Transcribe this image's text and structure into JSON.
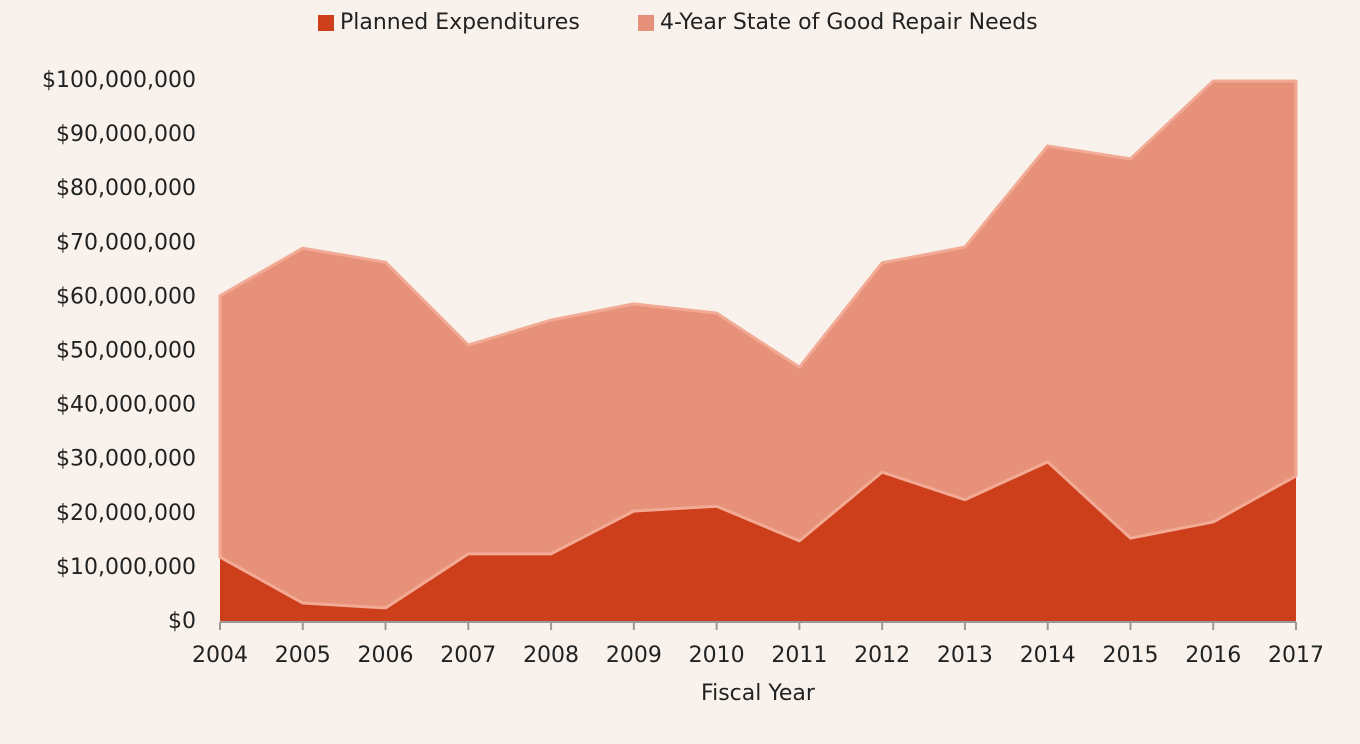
{
  "chart_data": {
    "type": "stacked_area",
    "xlabel": "Fiscal Year",
    "categories": [
      "2004",
      "2005",
      "2006",
      "2007",
      "2008",
      "2009",
      "2010",
      "2011",
      "2012",
      "2013",
      "2014",
      "2015",
      "2016",
      "2017"
    ],
    "series": [
      {
        "name": "Planned Expenditures",
        "color": "#cc3f1a",
        "values": [
          12000000,
          3500000,
          2600000,
          12600000,
          12600000,
          20500000,
          21400000,
          15000000,
          27700000,
          22600000,
          29600000,
          15500000,
          18500000,
          27000000
        ]
      },
      {
        "name": "4-Year State of Good Repair Needs",
        "color": "#e8917a",
        "values": [
          48300000,
          65600000,
          63900000,
          38600000,
          43200000,
          38300000,
          35700000,
          32100000,
          38700000,
          46700000,
          58400000,
          70100000,
          81500000,
          73000000
        ]
      }
    ],
    "ylim": [
      0,
      100000000
    ],
    "yticks": [
      {
        "value": 0,
        "label": "$0"
      },
      {
        "value": 10000000,
        "label": "$10,000,000"
      },
      {
        "value": 20000000,
        "label": "$20,000,000"
      },
      {
        "value": 30000000,
        "label": "$30,000,000"
      },
      {
        "value": 40000000,
        "label": "$40,000,000"
      },
      {
        "value": 50000000,
        "label": "$50,000,000"
      },
      {
        "value": 60000000,
        "label": "$60,000,000"
      },
      {
        "value": 70000000,
        "label": "$70,000,000"
      },
      {
        "value": 80000000,
        "label": "$80,000,000"
      },
      {
        "value": 90000000,
        "label": "$90,000,000"
      },
      {
        "value": 100000000,
        "label": "$100,000,000"
      }
    ],
    "legend": "top"
  }
}
